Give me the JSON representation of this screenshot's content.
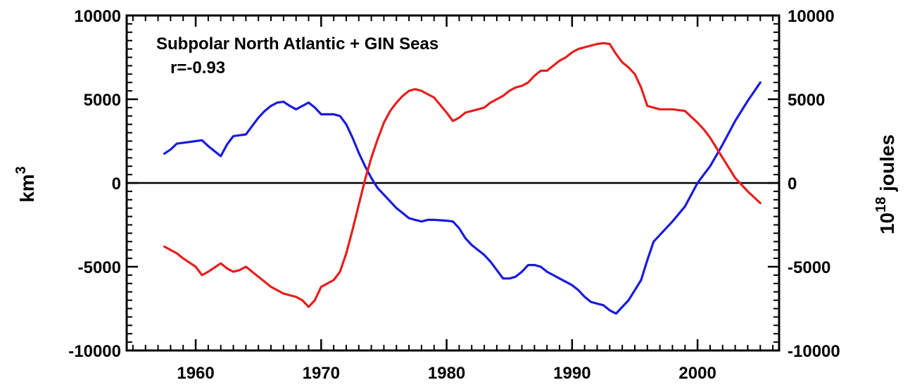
{
  "chart_data": {
    "type": "line",
    "title": "Subpolar North Atlantic + GIN Seas",
    "annotation": "r=-0.93",
    "ylabel_left": {
      "base": "km",
      "sup": "3"
    },
    "ylabel_right": {
      "base": "10",
      "sup": "18",
      "rest": " joules"
    },
    "xlim": [
      1954.5,
      2006.5
    ],
    "ylim": [
      -10000,
      10000
    ],
    "xticks": [
      1960,
      1970,
      1980,
      1990,
      2000
    ],
    "yticks": [
      10000,
      5000,
      0,
      -5000,
      -10000
    ],
    "yticks_right": [
      10000,
      5000,
      0,
      -5000,
      -10000
    ],
    "grid": false,
    "zero_line": true,
    "series": [
      {
        "color": "#1a1adc",
        "x": [
          1957.5,
          1958,
          1958.5,
          1959,
          1960,
          1960.5,
          1961,
          1962,
          1962.5,
          1963,
          1963.5,
          1964,
          1964.5,
          1965,
          1965.5,
          1966,
          1966.5,
          1967,
          1967.5,
          1968,
          1968.5,
          1969,
          1969.5,
          1970,
          1970.5,
          1971,
          1971.5,
          1972,
          1972.5,
          1973,
          1973.5,
          1974,
          1974.5,
          1975,
          1975.5,
          1976,
          1976.5,
          1977,
          1977.5,
          1978,
          1978.5,
          1979,
          1980,
          1980.5,
          1981,
          1981.5,
          1982,
          1982.5,
          1983,
          1983.5,
          1984,
          1984.5,
          1985,
          1985.5,
          1986,
          1986.5,
          1987,
          1987.5,
          1988,
          1988.5,
          1989,
          1989.5,
          1990,
          1990.5,
          1991,
          1991.5,
          1992,
          1992.5,
          1993,
          1993.5,
          1994,
          1994.5,
          1995,
          1995.5,
          1996,
          1996.5,
          1997,
          1998,
          1999,
          2000,
          2000.5,
          2001,
          2002,
          2003,
          2004,
          2005
        ],
        "values": [
          1750,
          2000,
          2350,
          2400,
          2500,
          2550,
          2200,
          1600,
          2300,
          2800,
          2850,
          2900,
          3400,
          3900,
          4300,
          4600,
          4800,
          4850,
          4600,
          4400,
          4600,
          4800,
          4500,
          4100,
          4100,
          4100,
          4000,
          3500,
          2700,
          1800,
          1000,
          300,
          -300,
          -700,
          -1100,
          -1500,
          -1800,
          -2100,
          -2200,
          -2300,
          -2200,
          -2200,
          -2250,
          -2300,
          -2700,
          -3300,
          -3700,
          -4000,
          -4300,
          -4700,
          -5200,
          -5700,
          -5700,
          -5600,
          -5300,
          -4900,
          -4900,
          -5000,
          -5300,
          -5500,
          -5700,
          -5900,
          -6100,
          -6400,
          -6800,
          -7100,
          -7200,
          -7300,
          -7600,
          -7800,
          -7400,
          -7000,
          -6400,
          -5800,
          -4600,
          -3500,
          -3100,
          -2300,
          -1400,
          0,
          500,
          1000,
          2300,
          3700,
          4900,
          6000
        ]
      },
      {
        "color": "#e61e1e",
        "x": [
          1957.5,
          1958,
          1958.5,
          1959,
          1960,
          1960.5,
          1961,
          1962,
          1962.5,
          1963,
          1963.5,
          1964,
          1964.5,
          1965,
          1965.5,
          1966,
          1966.5,
          1967,
          1967.5,
          1968,
          1968.5,
          1969,
          1969.5,
          1970,
          1970.5,
          1971,
          1971.5,
          1972,
          1972.5,
          1973,
          1973.5,
          1974,
          1974.5,
          1975,
          1975.5,
          1976,
          1976.5,
          1977,
          1977.5,
          1978,
          1978.5,
          1979,
          1980,
          1980.5,
          1981,
          1981.5,
          1982,
          1982.5,
          1983,
          1983.5,
          1984,
          1984.5,
          1985,
          1985.5,
          1986,
          1986.5,
          1987,
          1987.5,
          1988,
          1988.5,
          1989,
          1989.5,
          1990,
          1990.5,
          1991,
          1991.5,
          1992,
          1992.5,
          1993,
          1993.5,
          1994,
          1994.5,
          1995,
          1995.5,
          1996,
          1996.5,
          1997,
          1998,
          1999,
          2000,
          2000.5,
          2001,
          2002,
          2003,
          2004,
          2005
        ],
        "values": [
          -3800,
          -4000,
          -4200,
          -4500,
          -5000,
          -5500,
          -5300,
          -4800,
          -5100,
          -5300,
          -5200,
          -5000,
          -5300,
          -5600,
          -5900,
          -6200,
          -6400,
          -6600,
          -6700,
          -6800,
          -7000,
          -7400,
          -7000,
          -6200,
          -6000,
          -5800,
          -5300,
          -4200,
          -2800,
          -1300,
          200,
          1500,
          2600,
          3600,
          4300,
          4800,
          5200,
          5500,
          5600,
          5500,
          5300,
          5100,
          4200,
          3700,
          3900,
          4200,
          4300,
          4400,
          4500,
          4800,
          5000,
          5200,
          5500,
          5700,
          5800,
          6000,
          6400,
          6700,
          6700,
          7000,
          7300,
          7500,
          7800,
          8000,
          8100,
          8200,
          8300,
          8350,
          8300,
          7700,
          7200,
          6900,
          6500,
          5700,
          4600,
          4500,
          4400,
          4400,
          4300,
          3600,
          3200,
          2700,
          1500,
          300,
          -500,
          -1200
        ]
      }
    ]
  }
}
